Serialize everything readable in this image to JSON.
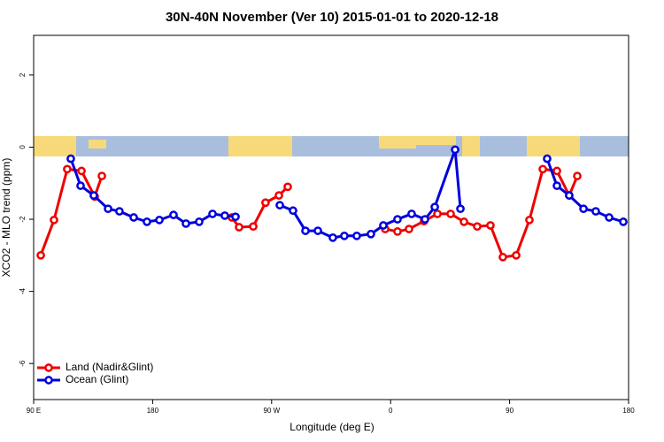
{
  "chart_data": {
    "type": "line",
    "title": "30N-40N November (Ver 10)   2015-01-01 to 2020-12-18",
    "x_label": "Longitude (deg E)",
    "y_label": "XCO2 - MLO trend (ppm)",
    "xlim": [
      90,
      540
    ],
    "ylim": [
      -7,
      3.1
    ],
    "xticks": [
      {
        "value": 90,
        "label": "90 E"
      },
      180,
      {
        "value": 270,
        "label": "90 W"
      },
      {
        "value": 360,
        "label": "0"
      },
      {
        "value": 450,
        "label": "90"
      },
      {
        "value": 540,
        "label": "180"
      }
    ],
    "yticks": [
      2,
      0,
      -2,
      -4,
      -6
    ],
    "legend": "bottomleft",
    "series": [
      {
        "name": "Land (Nadir&Glint)",
        "color": "#ee0000",
        "x": [
          95.4,
          105.4,
          115.4,
          126.2,
          136.2,
          141.6,
          null,
          240.0,
          245.4,
          256.1,
          265.4,
          275.5,
          282.2,
          null,
          355.9,
          365.2,
          373.9,
          385.3,
          395.4,
          405.4,
          415.5,
          425.5,
          435.5,
          444.9,
          455.0,
          465.0,
          475.1,
          485.8,
          495.1,
          501.2
        ],
        "values": [
          -3.0,
          -2.02,
          -0.61,
          -0.66,
          -1.37,
          -0.8,
          null,
          -1.95,
          -2.22,
          -2.2,
          -1.54,
          -1.34,
          -1.1,
          null,
          -2.27,
          -2.34,
          -2.27,
          -2.05,
          -1.85,
          -1.85,
          -2.07,
          -2.2,
          -2.17,
          -3.05,
          -3.0,
          -2.02,
          -0.61,
          -0.66,
          -1.34,
          -0.8
        ]
      },
      {
        "name": "Ocean (Glint)",
        "color": "#0000dd",
        "x": [
          118.1,
          125.5,
          135.5,
          146.3,
          154.9,
          165.7,
          175.7,
          185.1,
          195.8,
          205.2,
          215.2,
          225.3,
          234.6,
          242.7,
          null,
          276.2,
          286.2,
          295.6,
          305.0,
          316.3,
          325.0,
          334.4,
          345.1,
          354.5,
          365.2,
          375.9,
          386.0,
          393.4,
          408.8,
          412.8,
          null,
          478.4,
          485.8,
          495.1,
          505.9,
          515.2,
          525.3,
          536.0
        ],
        "values": [
          -0.32,
          -1.07,
          -1.34,
          -1.71,
          -1.78,
          -1.95,
          -2.07,
          -2.02,
          -1.88,
          -2.12,
          -2.07,
          -1.85,
          -1.9,
          -1.93,
          null,
          -1.61,
          -1.76,
          -2.32,
          -2.32,
          -2.51,
          -2.46,
          -2.46,
          -2.41,
          -2.17,
          -2.0,
          -1.85,
          -2.0,
          -1.66,
          -0.07,
          -1.71,
          null,
          -0.32,
          -1.07,
          -1.34,
          -1.71,
          -1.78,
          -1.95,
          -2.07
        ]
      }
    ]
  }
}
